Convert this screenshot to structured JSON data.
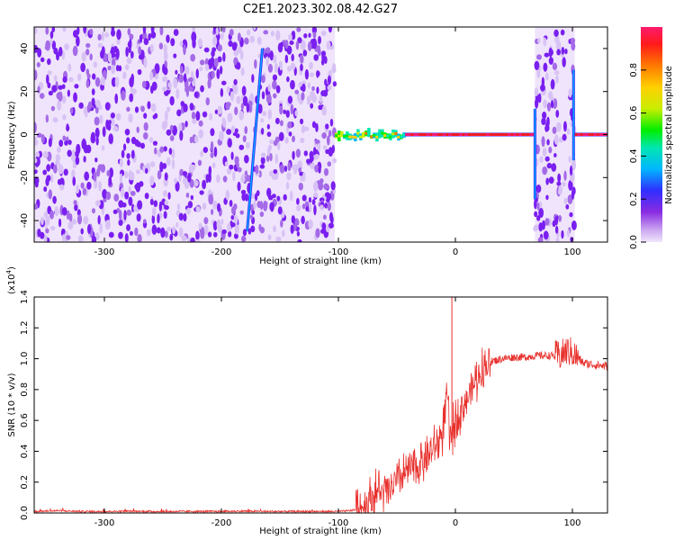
{
  "title": "C2E1.2023.302.08.42.G27",
  "chart_data": [
    {
      "type": "heatmap",
      "xlabel": "Height of straight line (km)",
      "ylabel": "Frequency (Hz)",
      "xlim": [
        -360,
        130
      ],
      "ylim": [
        -50,
        50
      ],
      "x_ticks": [
        -300,
        -200,
        -100,
        0,
        100
      ],
      "y_ticks": [
        -40,
        -20,
        0,
        20,
        40
      ],
      "colorbar": {
        "label": "Normalized spectral amplitude",
        "range": [
          0,
          1
        ],
        "ticks": [
          "0.0",
          "0.2",
          "0.4",
          "0.6",
          "0.8"
        ],
        "colormap": [
          "#f0e6fb",
          "#c9a2f0",
          "#8a2be2",
          "#2f2fff",
          "#00b7ff",
          "#00e6b0",
          "#00ee00",
          "#c8ee00",
          "#ffd000",
          "#ff7a00",
          "#ff1a1a",
          "#ff1a6e"
        ]
      },
      "regions": [
        {
          "x": [
            -360,
            -103
          ],
          "content": "broadband noise",
          "amplitude_range": [
            0.0,
            0.3
          ]
        },
        {
          "x": [
            -103,
            68
          ],
          "content": "carrier line near 0 Hz",
          "amplitude_range": [
            0.3,
            1.0
          ]
        },
        {
          "x": [
            68,
            102
          ],
          "content": "broadband noise",
          "amplitude_range": [
            0.0,
            0.3
          ]
        },
        {
          "x": [
            102,
            130
          ],
          "content": "carrier line near 0 Hz",
          "amplitude_range": [
            0.8,
            1.0
          ]
        }
      ],
      "features": [
        {
          "name": "slanted trace",
          "x": [
            -178,
            -165
          ],
          "y": [
            -45,
            40
          ]
        },
        {
          "name": "vertical streak",
          "x": [
            68,
            68
          ],
          "y": [
            -30,
            12
          ]
        },
        {
          "name": "vertical streak",
          "x": [
            101,
            101
          ],
          "y": [
            -12,
            30
          ]
        }
      ]
    },
    {
      "type": "line",
      "xlabel": "Height of straight line (km)",
      "ylabel": "SNR (10 * v/v)",
      "y_multiplier": "(x10",
      "y_multiplier_exp": "4",
      "y_multiplier_close": ")",
      "xlim": [
        -360,
        130
      ],
      "ylim": [
        0,
        1.4
      ],
      "x_ticks": [
        -300,
        -200,
        -100,
        0,
        100
      ],
      "y_ticks": [
        "0.0",
        "0.2",
        "0.4",
        "0.6",
        "0.8",
        "1.0",
        "1.2",
        "1.4"
      ],
      "line_color": "#e8312d",
      "series": [
        {
          "x": [
            -360,
            -340,
            -320,
            -300,
            -280,
            -260,
            -240,
            -220,
            -200,
            -180,
            -160,
            -140,
            -120,
            -100,
            -90,
            -80,
            -75,
            -70,
            -65,
            -60,
            -55,
            -50,
            -45,
            -40,
            -35,
            -30,
            -25,
            -20,
            -15,
            -10,
            -7,
            -5,
            0,
            5,
            10,
            15,
            20,
            25,
            30,
            40,
            50,
            60,
            70,
            80,
            90,
            95,
            100,
            105,
            110,
            120,
            130
          ],
          "y": [
            0.01,
            0.015,
            0.01,
            0.01,
            0.012,
            0.01,
            0.01,
            0.01,
            0.01,
            0.012,
            0.01,
            0.01,
            0.01,
            0.01,
            0.015,
            0.03,
            0.08,
            0.12,
            0.14,
            0.12,
            0.16,
            0.2,
            0.24,
            0.28,
            0.3,
            0.32,
            0.36,
            0.4,
            0.45,
            0.55,
            0.8,
            0.45,
            0.6,
            0.68,
            0.74,
            0.82,
            0.9,
            0.95,
            0.98,
            1.0,
            1.01,
            1.01,
            1.02,
            1.02,
            1.02,
            1.05,
            1.04,
            1.0,
            0.97,
            0.96,
            0.95
          ]
        }
      ],
      "spike": {
        "x": -3,
        "y": 1.4
      }
    }
  ]
}
